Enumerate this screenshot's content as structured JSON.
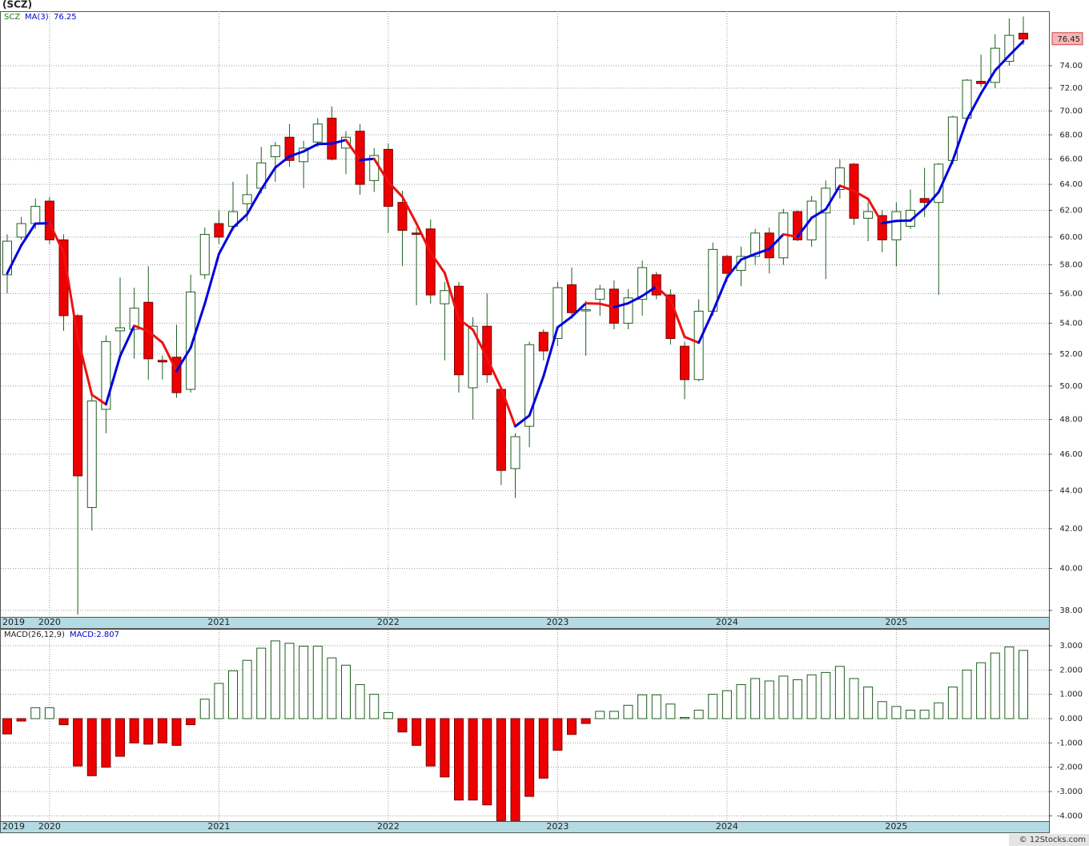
{
  "chart_data": [
    {
      "type": "candlestick",
      "title": "(SCZ)",
      "symbol": "SCZ",
      "categories": [
        "2019",
        null,
        null,
        "2020",
        null,
        null,
        null,
        null,
        null,
        null,
        null,
        null,
        null,
        null,
        null,
        "2021",
        null,
        null,
        null,
        null,
        null,
        null,
        null,
        null,
        null,
        null,
        null,
        "2022",
        null,
        null,
        null,
        null,
        null,
        null,
        null,
        null,
        null,
        null,
        null,
        "2023",
        null,
        null,
        null,
        null,
        null,
        null,
        null,
        null,
        null,
        null,
        null,
        "2024",
        null,
        null,
        null,
        null,
        null,
        null,
        null,
        null,
        null,
        null,
        null,
        "2025",
        null,
        null,
        null,
        null,
        null,
        null,
        null,
        null,
        null
      ],
      "open": [
        57.3,
        60.0,
        61.0,
        62.7,
        59.8,
        54.5,
        43.1,
        48.6,
        53.5,
        53.6,
        55.4,
        51.6,
        51.8,
        49.8,
        57.3,
        61.0,
        60.8,
        62.5,
        63.7,
        66.2,
        67.8,
        65.8,
        67.4,
        69.4,
        66.9,
        68.3,
        64.3,
        66.8,
        62.6,
        60.3,
        60.6,
        55.3,
        56.5,
        49.9,
        53.8,
        49.8,
        45.2,
        47.6,
        53.4,
        53.0,
        56.6,
        54.9,
        55.6,
        56.3,
        54.0,
        55.6,
        57.3,
        55.9,
        52.5,
        50.4,
        54.8,
        58.6,
        57.6,
        58.6,
        60.3,
        58.5,
        61.9,
        59.8,
        61.8,
        63.6,
        65.6,
        61.4,
        61.6,
        59.8,
        60.8,
        62.9,
        62.6,
        65.9,
        69.4,
        72.6,
        72.5,
        74.4,
        77.0
      ],
      "high": [
        60.2,
        61.5,
        62.9,
        63.0,
        60.2,
        54.6,
        49.6,
        53.2,
        57.1,
        56.4,
        57.9,
        51.9,
        53.9,
        57.3,
        60.7,
        62.0,
        64.2,
        64.8,
        67.0,
        67.4,
        68.9,
        67.5,
        69.4,
        70.4,
        68.3,
        68.9,
        66.9,
        67.3,
        63.5,
        60.7,
        61.3,
        56.8,
        56.8,
        54.4,
        56.0,
        49.8,
        47.2,
        52.8,
        53.6,
        56.8,
        57.8,
        55.5,
        56.6,
        56.9,
        56.3,
        58.3,
        57.5,
        56.3,
        52.8,
        55.6,
        59.6,
        58.7,
        59.3,
        60.6,
        60.7,
        62.1,
        62.0,
        63.1,
        64.3,
        66.0,
        65.7,
        62.6,
        62.0,
        62.6,
        63.6,
        65.3,
        65.7,
        69.6,
        72.8,
        75.0,
        76.9,
        78.4,
        78.6
      ],
      "low": [
        56.0,
        59.8,
        60.6,
        59.5,
        53.5,
        37.8,
        41.9,
        47.2,
        51.7,
        51.7,
        50.4,
        50.4,
        49.3,
        49.6,
        57.0,
        59.5,
        60.5,
        61.2,
        63.3,
        64.2,
        65.4,
        63.7,
        67.0,
        65.9,
        64.8,
        63.2,
        63.4,
        60.3,
        57.9,
        55.2,
        55.3,
        51.6,
        49.6,
        48.0,
        50.2,
        44.3,
        43.6,
        46.4,
        51.6,
        52.5,
        54.3,
        51.9,
        54.5,
        53.6,
        53.6,
        54.5,
        55.6,
        52.6,
        49.2,
        50.3,
        54.5,
        56.8,
        56.5,
        58.0,
        57.4,
        58.0,
        59.7,
        59.3,
        57.0,
        62.9,
        60.9,
        59.7,
        58.9,
        57.9,
        60.6,
        61.5,
        55.9,
        65.6,
        69.0,
        72.1,
        72.0,
        74.0,
        75.9
      ],
      "close": [
        59.7,
        61.0,
        62.3,
        59.8,
        54.5,
        44.8,
        49.1,
        52.8,
        53.7,
        55.0,
        51.7,
        51.5,
        49.6,
        56.1,
        60.2,
        60.0,
        61.9,
        63.2,
        65.7,
        67.1,
        65.9,
        66.9,
        68.9,
        66.0,
        67.8,
        64.0,
        66.3,
        62.3,
        60.5,
        60.2,
        55.9,
        56.2,
        50.7,
        53.8,
        50.7,
        45.1,
        47.0,
        52.6,
        52.2,
        56.4,
        54.7,
        54.9,
        56.3,
        54.0,
        55.7,
        57.8,
        55.9,
        53.0,
        50.4,
        54.8,
        59.1,
        57.4,
        58.6,
        60.3,
        58.5,
        61.8,
        59.8,
        62.7,
        63.7,
        65.3,
        61.4,
        61.9,
        59.8,
        61.9,
        62.0,
        62.6,
        65.6,
        69.5,
        72.7,
        72.4,
        75.6,
        76.8,
        76.45
      ],
      "ma": {
        "name": "MA(3)",
        "up_color": "#0000dd",
        "down_color": "#ee1111",
        "values": [
          57.4,
          59.4,
          61.0,
          61.03,
          58.87,
          53.03,
          49.47,
          48.9,
          51.87,
          53.83,
          53.47,
          52.73,
          50.93,
          52.4,
          55.3,
          58.77,
          60.7,
          61.7,
          63.6,
          65.33,
          66.23,
          66.63,
          67.23,
          67.27,
          67.57,
          65.93,
          66.03,
          64.2,
          63.03,
          61.0,
          58.87,
          57.43,
          54.27,
          53.57,
          51.73,
          49.87,
          47.6,
          48.23,
          50.6,
          53.73,
          54.43,
          55.33,
          55.3,
          55.07,
          55.33,
          55.83,
          56.47,
          55.57,
          53.1,
          52.73,
          54.77,
          57.1,
          58.37,
          58.77,
          59.13,
          60.2,
          60.03,
          61.43,
          62.07,
          63.9,
          63.47,
          62.87,
          61.03,
          61.2,
          61.23,
          62.17,
          63.4,
          65.9,
          69.27,
          71.53,
          73.57,
          74.93,
          76.25
        ]
      },
      "up_color": "#ffffff",
      "down_color": "#ee0000",
      "edge_color": "#1f5f1f",
      "log_scale": true,
      "grid": true,
      "ylim": [
        37.7,
        79.1
      ],
      "yticks": [
        {
          "value": 38,
          "label": "38.00"
        },
        {
          "value": 40,
          "label": "40.00"
        },
        {
          "value": 42,
          "label": "42.00"
        },
        {
          "value": 44,
          "label": "44.00"
        },
        {
          "value": 46,
          "label": "46.00"
        },
        {
          "value": 48,
          "label": "48.00"
        },
        {
          "value": 50,
          "label": "50.00"
        },
        {
          "value": 52,
          "label": "52.00"
        },
        {
          "value": 54,
          "label": "54.00"
        },
        {
          "value": 56,
          "label": "56.00"
        },
        {
          "value": 58,
          "label": "58.00"
        },
        {
          "value": 60,
          "label": "60.00"
        },
        {
          "value": 62,
          "label": "62.00"
        },
        {
          "value": 64,
          "label": "64.00"
        },
        {
          "value": 66,
          "label": "66.00"
        },
        {
          "value": 68,
          "label": "68.00"
        },
        {
          "value": 70,
          "label": "70.00"
        },
        {
          "value": 72,
          "label": "72.00"
        },
        {
          "value": 74,
          "label": "74.00"
        }
      ]
    },
    {
      "type": "bar",
      "title": "MACD(26,12,9)",
      "macd_label": "MACD:2.807",
      "values": [
        -0.63,
        -0.1,
        0.45,
        0.45,
        -0.25,
        -1.95,
        -2.35,
        -2.0,
        -1.55,
        -1.0,
        -1.05,
        -1.0,
        -1.1,
        -0.25,
        0.8,
        1.45,
        1.97,
        2.4,
        2.9,
        3.2,
        3.1,
        2.98,
        2.98,
        2.5,
        2.2,
        1.4,
        1.0,
        0.25,
        -0.55,
        -1.1,
        -1.95,
        -2.4,
        -3.35,
        -3.35,
        -3.55,
        -4.2,
        -4.2,
        -3.2,
        -2.45,
        -1.3,
        -0.65,
        -0.2,
        0.3,
        0.3,
        0.55,
        0.98,
        0.98,
        0.6,
        0.05,
        0.35,
        1.0,
        1.15,
        1.4,
        1.65,
        1.55,
        1.75,
        1.6,
        1.8,
        1.9,
        2.15,
        1.65,
        1.3,
        0.7,
        0.5,
        0.35,
        0.35,
        0.65,
        1.3,
        2.0,
        2.3,
        2.7,
        2.95,
        2.807
      ],
      "pos_color": "#ffffff",
      "neg_color": "#ee0000",
      "grid": true,
      "ylim": [
        -4.22,
        3.66
      ],
      "yticks": [
        {
          "value": 3,
          "label": "3.000"
        },
        {
          "value": 2,
          "label": "2.000"
        },
        {
          "value": 1,
          "label": "1.000"
        },
        {
          "value": 0,
          "label": "0.000"
        },
        {
          "value": -1,
          "label": "-1.000"
        },
        {
          "value": -2,
          "label": "-2.000"
        },
        {
          "value": -3,
          "label": "-3.000"
        },
        {
          "value": -4,
          "label": "-4.000"
        }
      ]
    }
  ],
  "footer": "© 12Stocks.com"
}
